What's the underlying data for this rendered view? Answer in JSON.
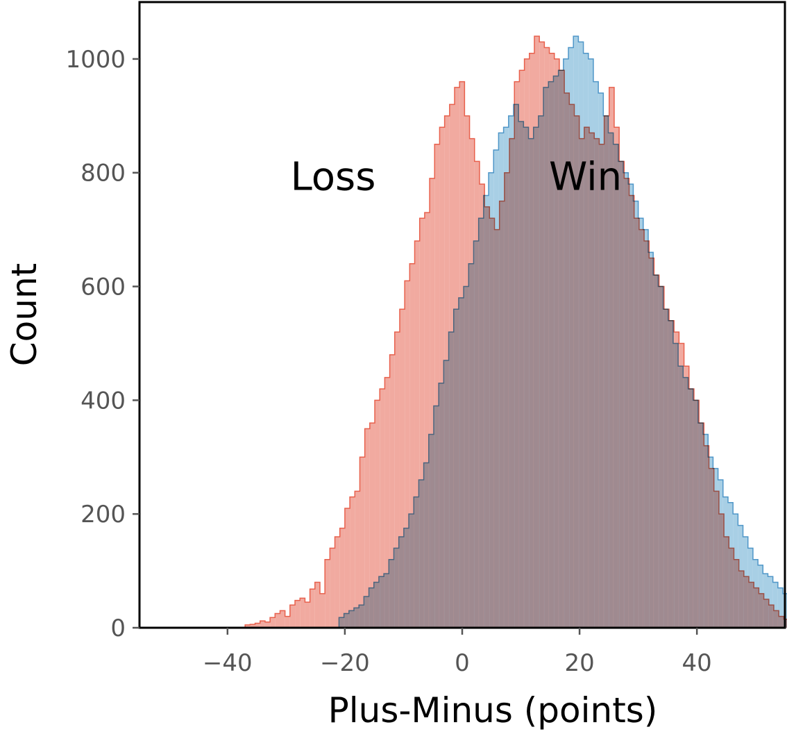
{
  "chart_data": {
    "type": "histogram",
    "xlabel": "Plus-Minus (points)",
    "ylabel": "Count",
    "xlim": [
      -55,
      55
    ],
    "ylim": [
      0,
      1100
    ],
    "xticks": [
      -40,
      -20,
      0,
      20,
      40
    ],
    "xtick_labels": [
      "−40",
      "−20",
      "0",
      "20",
      "40"
    ],
    "yticks": [
      0,
      200,
      400,
      600,
      800,
      1000
    ],
    "ytick_labels": [
      "0",
      "200",
      "400",
      "600",
      "800",
      "1000"
    ],
    "bin_width": 0.85,
    "annotations": [
      {
        "text": "Loss",
        "x": -22,
        "y": 770
      },
      {
        "text": "Win",
        "x": 21,
        "y": 770
      }
    ],
    "series": [
      {
        "name": "Loss",
        "color": "#e8604c",
        "fill": "#f0a196",
        "bin_start": -37,
        "values": [
          5,
          6,
          8,
          12,
          10,
          18,
          25,
          30,
          20,
          40,
          48,
          52,
          45,
          68,
          80,
          60,
          120,
          140,
          160,
          175,
          210,
          230,
          240,
          300,
          350,
          360,
          400,
          420,
          440,
          480,
          520,
          560,
          610,
          640,
          680,
          720,
          730,
          790,
          850,
          880,
          900,
          920,
          950,
          960,
          900,
          860,
          820,
          780,
          740,
          720,
          700,
          750,
          800,
          860,
          960,
          980,
          1000,
          1010,
          1040,
          1030,
          1020,
          1010,
          1000,
          980,
          940,
          920,
          900,
          860,
          880,
          870,
          860,
          850,
          900,
          950,
          880,
          820,
          790,
          760,
          720,
          700,
          680,
          650,
          620,
          600,
          560,
          540,
          520,
          500,
          460,
          420,
          400,
          360,
          320,
          280,
          240,
          200,
          160,
          140,
          120,
          100,
          90,
          80,
          70,
          60,
          50,
          40,
          30,
          20,
          15,
          10
        ]
      },
      {
        "name": "Win",
        "color": "#3b8bc2",
        "fill": "#94c3df",
        "bin_start": -21,
        "values": [
          18,
          25,
          30,
          35,
          40,
          55,
          70,
          80,
          90,
          95,
          120,
          140,
          160,
          175,
          200,
          230,
          260,
          290,
          340,
          390,
          430,
          470,
          520,
          560,
          580,
          600,
          640,
          680,
          720,
          760,
          800,
          840,
          870,
          880,
          900,
          920,
          890,
          880,
          860,
          880,
          900,
          950,
          960,
          970,
          980,
          1000,
          1020,
          1040,
          1030,
          1010,
          1000,
          960,
          940,
          900,
          870,
          850,
          820,
          800,
          780,
          750,
          720,
          700,
          660,
          620,
          600,
          560,
          540,
          500,
          460,
          440,
          420,
          400,
          360,
          340,
          300,
          280,
          260,
          230,
          220,
          200,
          180,
          160,
          140,
          120,
          110,
          95,
          90,
          80,
          70,
          60,
          55,
          50,
          45,
          40,
          35,
          30,
          25,
          20,
          15,
          10,
          8,
          6,
          5,
          4,
          3
        ]
      }
    ]
  }
}
